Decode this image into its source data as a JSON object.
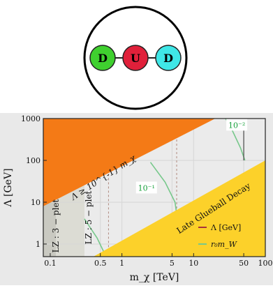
{
  "diagram": {
    "nodes": [
      {
        "label": "D",
        "color": "#3fd02f"
      },
      {
        "label": "U",
        "color": "#e0203a"
      },
      {
        "label": "D",
        "color": "#3fe7e7"
      }
    ]
  },
  "chart_data": {
    "type": "line",
    "xlabel": "m_χ [TeV]",
    "ylabel": "Λ [GeV]",
    "xscale": "log",
    "yscale": "log",
    "xlim": [
      0.08,
      100
    ],
    "ylim": [
      0.5,
      1000
    ],
    "x_ticks": [
      "0.1",
      "0.5",
      "1",
      "5",
      "10",
      "50",
      "100"
    ],
    "y_ticks": [
      "1",
      "10",
      "100",
      "1000"
    ],
    "colors": {
      "excluded_orange": "#f47a16",
      "glueball_yellow": "#fcd12a",
      "lz3_band": "#c9c9c1",
      "lz5_band": "#dcdcd4",
      "lambda_line": "#a7333a",
      "r0mw_line": "#77c88b"
    },
    "regions": [
      {
        "label": "Λ ≥ 10^{-1} m_χ",
        "boundary": [
          [
            0.08,
            8
          ],
          [
            20,
            1000
          ]
        ]
      },
      {
        "label": "Late Glueball Decay",
        "boundary": [
          [
            0.4,
            0.5
          ],
          [
            100,
            100
          ]
        ]
      },
      {
        "label": "LZ : 3 − plet",
        "x_range": [
          0.08,
          0.12
        ]
      },
      {
        "label": "LZ : 5 − plet",
        "x_range": [
          0.12,
          0.3
        ]
      }
    ],
    "series": [
      {
        "name": "Λ [GeV]",
        "color": "#a7333a",
        "points": [
          [
            50,
            1000
          ],
          [
            50,
            100
          ]
        ]
      },
      {
        "name": "r₀m_W",
        "color": "#77c88b",
        "curves": [
          {
            "label": "10⁻¹",
            "points": [
              [
                0.3,
                4
              ],
              [
                0.45,
                1.4
              ],
              [
                0.6,
                0.5
              ]
            ]
          },
          {
            "label": "",
            "points": [
              [
                2.5,
                90
              ],
              [
                4.0,
                30
              ],
              [
                5.5,
                10
              ],
              [
                7.0,
                0.5
              ]
            ]
          },
          {
            "label": "10⁻²",
            "points": [
              [
                28,
                1000
              ],
              [
                35,
                500
              ],
              [
                45,
                200
              ],
              [
                52,
                100
              ]
            ]
          }
        ]
      },
      {
        "name": "",
        "style": "dashed",
        "points": [
          [
            0.65,
            150
          ],
          [
            0.65,
            0.5
          ]
        ]
      },
      {
        "name": "",
        "style": "dashed",
        "points": [
          [
            5.8,
            1000
          ],
          [
            5.8,
            0.5
          ]
        ]
      }
    ],
    "annotations": [
      {
        "text": "10⁻²",
        "x": 40,
        "y": 700
      },
      {
        "text": "10⁻¹",
        "x": 2.2,
        "y": 22
      }
    ],
    "legend": {
      "placement": "bottom-right"
    }
  }
}
